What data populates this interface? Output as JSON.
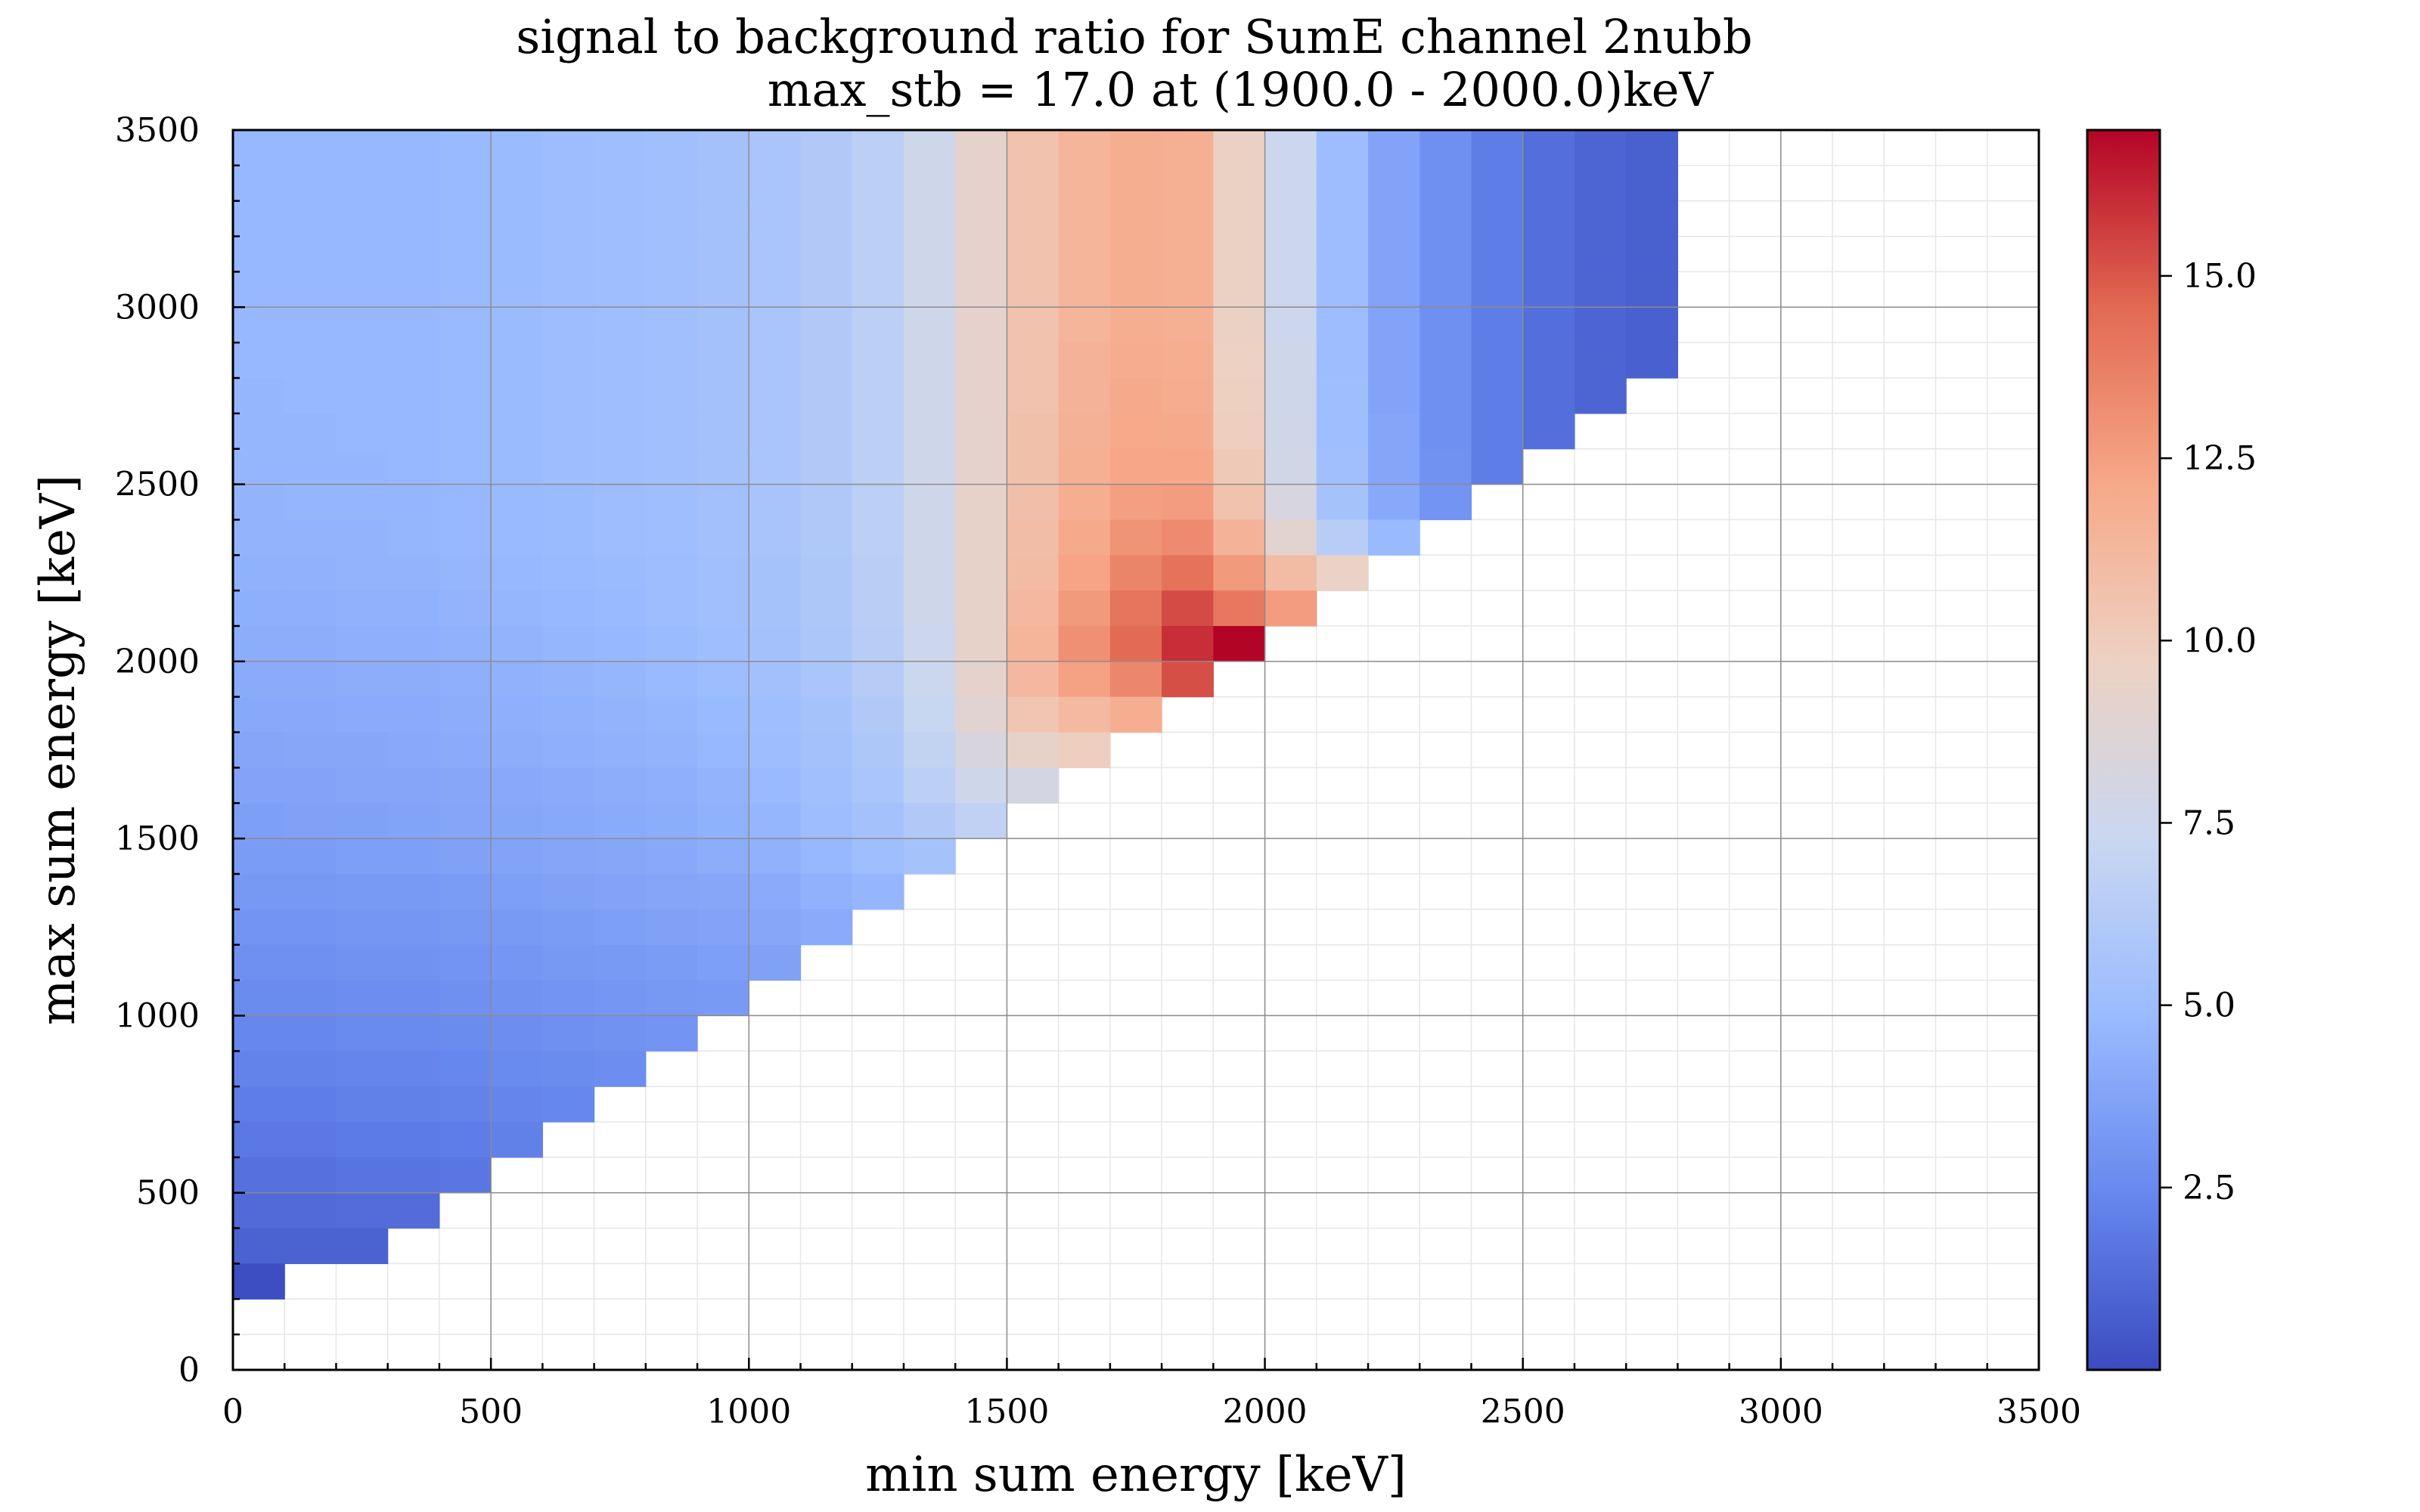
{
  "chart_data": {
    "type": "heatmap",
    "title": "signal to background ratio for SumE channel 2nubb",
    "subtitle": "max_stb = 17.0 at (1900.0 - 2000.0)keV",
    "xlabel": "min sum energy [keV]",
    "ylabel": "max sum energy [keV]",
    "xlim": [
      0,
      3500
    ],
    "ylim": [
      0,
      3500
    ],
    "bin_width": 100,
    "x_bin_starts": [
      0,
      100,
      200,
      300,
      400,
      500,
      600,
      700,
      800,
      900,
      1000,
      1100,
      1200,
      1300,
      1400,
      1500,
      1600,
      1700,
      1800,
      1900,
      2000,
      2100,
      2200,
      2300,
      2400,
      2500,
      2600,
      2700
    ],
    "y_bin_starts_top_to_bottom": [
      3400,
      3300,
      3200,
      3100,
      3000,
      2900,
      2800,
      2700,
      2600,
      2500,
      2400,
      2300,
      2200,
      2100,
      2000,
      1900,
      1800,
      1700,
      1600,
      1500,
      1400,
      1300,
      1200,
      1100,
      1000,
      900,
      800,
      700,
      600,
      500,
      400,
      300,
      200
    ],
    "z_rows": [
      [
        4.7,
        4.7,
        4.7,
        4.7,
        4.8,
        4.9,
        5,
        5.1,
        5.2,
        5.4,
        5.7,
        6.1,
        6.6,
        7.6,
        9.2,
        10.6,
        11.4,
        11.8,
        11.7,
        9.6,
        7.5,
        5,
        3.7,
        2.8,
        2,
        1.4,
        1,
        0.8
      ],
      [
        4.7,
        4.7,
        4.7,
        4.7,
        4.8,
        4.9,
        5,
        5.1,
        5.2,
        5.4,
        5.7,
        6.1,
        6.6,
        7.6,
        9.2,
        10.6,
        11.4,
        11.8,
        11.7,
        9.6,
        7.5,
        5,
        3.7,
        2.8,
        2,
        1.4,
        1,
        0.8
      ],
      [
        4.7,
        4.7,
        4.7,
        4.7,
        4.8,
        4.9,
        5,
        5.1,
        5.2,
        5.4,
        5.7,
        6.1,
        6.6,
        7.6,
        9.2,
        10.6,
        11.4,
        11.8,
        11.7,
        9.6,
        7.5,
        5,
        3.7,
        2.8,
        2,
        1.4,
        1,
        0.8
      ],
      [
        4.7,
        4.7,
        4.7,
        4.7,
        4.8,
        4.9,
        5,
        5.1,
        5.2,
        5.4,
        5.7,
        6.1,
        6.6,
        7.6,
        9.2,
        10.6,
        11.4,
        11.8,
        11.7,
        9.6,
        7.5,
        5,
        3.7,
        2.8,
        2,
        1.4,
        1,
        0.8
      ],
      [
        4.7,
        4.7,
        4.7,
        4.7,
        4.8,
        4.9,
        5,
        5.1,
        5.2,
        5.4,
        5.7,
        6.1,
        6.6,
        7.6,
        9.2,
        10.6,
        11.4,
        11.8,
        11.7,
        9.6,
        7.5,
        5,
        3.7,
        2.8,
        2,
        1.4,
        1,
        0.8
      ],
      [
        4.7,
        4.7,
        4.7,
        4.7,
        4.8,
        4.9,
        5,
        5.1,
        5.2,
        5.4,
        5.7,
        6.1,
        6.6,
        7.6,
        9.2,
        10.6,
        11.4,
        11.8,
        11.7,
        9.6,
        7.5,
        5,
        3.7,
        2.8,
        2,
        1.4,
        1,
        0.8
      ],
      [
        4.7,
        4.7,
        4.7,
        4.7,
        4.8,
        4.9,
        5,
        5.1,
        5.2,
        5.4,
        5.7,
        6.1,
        6.6,
        7.6,
        9.2,
        10.6,
        11.5,
        11.9,
        11.8,
        9.7,
        7.6,
        5,
        3.7,
        2.8,
        2,
        1.4,
        1,
        0.8
      ],
      [
        4.6,
        4.7,
        4.7,
        4.7,
        4.8,
        4.9,
        5,
        5.1,
        5.2,
        5.4,
        5.7,
        6.1,
        6.6,
        7.6,
        9.2,
        10.6,
        11.5,
        12,
        11.9,
        9.8,
        7.6,
        5.1,
        3.7,
        2.8,
        2,
        1.4,
        1,
        null
      ],
      [
        4.6,
        4.6,
        4.7,
        4.7,
        4.8,
        4.9,
        5,
        5.1,
        5.2,
        5.4,
        5.7,
        6.1,
        6.6,
        7.6,
        9.2,
        10.7,
        11.6,
        12.1,
        12,
        9.9,
        7.7,
        5.1,
        3.8,
        2.8,
        2,
        1.4,
        null,
        null
      ],
      [
        4.6,
        4.6,
        4.6,
        4.7,
        4.8,
        4.9,
        5,
        5.1,
        5.2,
        5.4,
        5.7,
        6.1,
        6.6,
        7.6,
        9.2,
        10.7,
        11.7,
        12.2,
        12.2,
        10.2,
        7.8,
        5.2,
        3.8,
        2.9,
        2,
        null,
        null,
        null
      ],
      [
        4.5,
        4.6,
        4.6,
        4.6,
        4.7,
        4.8,
        4.9,
        5,
        5.1,
        5.3,
        5.6,
        6,
        6.6,
        7.6,
        9.3,
        10.8,
        11.8,
        12.5,
        12.6,
        10.6,
        8.2,
        5.5,
        4,
        3,
        null,
        null,
        null,
        null
      ],
      [
        4.5,
        4.5,
        4.5,
        4.6,
        4.7,
        4.8,
        4.9,
        5,
        5.1,
        5.3,
        5.6,
        6,
        6.6,
        7.6,
        9.3,
        10.9,
        12,
        12.9,
        13.3,
        11.5,
        9,
        6.4,
        4.8,
        null,
        null,
        null,
        null,
        null
      ],
      [
        4.4,
        4.4,
        4.5,
        4.5,
        4.6,
        4.7,
        4.8,
        4.9,
        5,
        5.2,
        5.5,
        5.9,
        6.5,
        7.6,
        9.3,
        11,
        12.3,
        13.5,
        14.2,
        12.7,
        11,
        9.5,
        null,
        null,
        null,
        null,
        null,
        null
      ],
      [
        4.3,
        4.3,
        4.4,
        4.4,
        4.5,
        4.6,
        4.7,
        4.8,
        5,
        5.2,
        5.5,
        5.9,
        6.5,
        7.6,
        9.3,
        11.2,
        12.7,
        14.1,
        15.3,
        14,
        12.6,
        null,
        null,
        null,
        null,
        null,
        null,
        null
      ],
      [
        4.2,
        4.2,
        4.3,
        4.3,
        4.4,
        4.5,
        4.6,
        4.7,
        4.9,
        5.1,
        5.4,
        5.8,
        6.4,
        7.5,
        9.3,
        11.4,
        13.1,
        14.5,
        16,
        17,
        null,
        null,
        null,
        null,
        null,
        null,
        null,
        null
      ],
      [
        4.1,
        4.1,
        4.2,
        4.2,
        4.3,
        4.4,
        4.5,
        4.6,
        4.8,
        5,
        5.3,
        5.7,
        6.3,
        7.4,
        9.2,
        11.2,
        12.4,
        13.4,
        15.2,
        null,
        null,
        null,
        null,
        null,
        null,
        null,
        null,
        null
      ],
      [
        4,
        4,
        4.1,
        4.1,
        4.2,
        4.3,
        4.4,
        4.5,
        4.6,
        4.8,
        5.1,
        5.5,
        6.1,
        7.2,
        8.9,
        10.4,
        11.1,
        11.8,
        null,
        null,
        null,
        null,
        null,
        null,
        null,
        null,
        null,
        null
      ],
      [
        3.8,
        3.9,
        3.9,
        4,
        4.1,
        4.2,
        4.3,
        4.4,
        4.5,
        4.7,
        5,
        5.4,
        5.9,
        6.9,
        8.3,
        9.3,
        9.9,
        null,
        null,
        null,
        null,
        null,
        null,
        null,
        null,
        null,
        null,
        null
      ],
      [
        3.7,
        3.7,
        3.8,
        3.8,
        3.9,
        4,
        4.1,
        4.2,
        4.3,
        4.5,
        4.8,
        5.2,
        5.7,
        6.6,
        7.6,
        8,
        null,
        null,
        null,
        null,
        null,
        null,
        null,
        null,
        null,
        null,
        null,
        null
      ],
      [
        3.5,
        3.6,
        3.6,
        3.7,
        3.8,
        3.9,
        4,
        4.1,
        4.2,
        4.4,
        4.6,
        5,
        5.4,
        6.1,
        6.8,
        null,
        null,
        null,
        null,
        null,
        null,
        null,
        null,
        null,
        null,
        null,
        null,
        null
      ],
      [
        3.4,
        3.4,
        3.5,
        3.5,
        3.6,
        3.7,
        3.8,
        3.9,
        4,
        4.2,
        4.4,
        4.7,
        5.1,
        5.5,
        null,
        null,
        null,
        null,
        null,
        null,
        null,
        null,
        null,
        null,
        null,
        null,
        null,
        null
      ],
      [
        3.2,
        3.2,
        3.3,
        3.3,
        3.4,
        3.5,
        3.6,
        3.7,
        3.8,
        3.9,
        4.1,
        4.4,
        4.6,
        null,
        null,
        null,
        null,
        null,
        null,
        null,
        null,
        null,
        null,
        null,
        null,
        null,
        null,
        null
      ],
      [
        3,
        3,
        3.1,
        3.1,
        3.2,
        3.3,
        3.4,
        3.5,
        3.6,
        3.7,
        3.9,
        4.1,
        null,
        null,
        null,
        null,
        null,
        null,
        null,
        null,
        null,
        null,
        null,
        null,
        null,
        null,
        null,
        null
      ],
      [
        2.8,
        2.8,
        2.9,
        2.9,
        3,
        3.1,
        3.2,
        3.3,
        3.4,
        3.5,
        3.6,
        null,
        null,
        null,
        null,
        null,
        null,
        null,
        null,
        null,
        null,
        null,
        null,
        null,
        null,
        null,
        null,
        null
      ],
      [
        2.6,
        2.6,
        2.7,
        2.7,
        2.8,
        2.9,
        3,
        3.1,
        3.2,
        3.3,
        null,
        null,
        null,
        null,
        null,
        null,
        null,
        null,
        null,
        null,
        null,
        null,
        null,
        null,
        null,
        null,
        null,
        null
      ],
      [
        2.4,
        2.4,
        2.5,
        2.5,
        2.6,
        2.7,
        2.8,
        2.9,
        3,
        null,
        null,
        null,
        null,
        null,
        null,
        null,
        null,
        null,
        null,
        null,
        null,
        null,
        null,
        null,
        null,
        null,
        null,
        null
      ],
      [
        2.2,
        2.2,
        2.3,
        2.3,
        2.4,
        2.5,
        2.6,
        2.7,
        null,
        null,
        null,
        null,
        null,
        null,
        null,
        null,
        null,
        null,
        null,
        null,
        null,
        null,
        null,
        null,
        null,
        null,
        null,
        null
      ],
      [
        2,
        2,
        2.1,
        2.1,
        2.2,
        2.3,
        2.4,
        null,
        null,
        null,
        null,
        null,
        null,
        null,
        null,
        null,
        null,
        null,
        null,
        null,
        null,
        null,
        null,
        null,
        null,
        null,
        null,
        null
      ],
      [
        1.8,
        1.8,
        1.9,
        1.9,
        2,
        2.1,
        null,
        null,
        null,
        null,
        null,
        null,
        null,
        null,
        null,
        null,
        null,
        null,
        null,
        null,
        null,
        null,
        null,
        null,
        null,
        null,
        null,
        null
      ],
      [
        1.5,
        1.5,
        1.6,
        1.6,
        1.7,
        null,
        null,
        null,
        null,
        null,
        null,
        null,
        null,
        null,
        null,
        null,
        null,
        null,
        null,
        null,
        null,
        null,
        null,
        null,
        null,
        null,
        null,
        null
      ],
      [
        1.2,
        1.2,
        1.3,
        1.3,
        null,
        null,
        null,
        null,
        null,
        null,
        null,
        null,
        null,
        null,
        null,
        null,
        null,
        null,
        null,
        null,
        null,
        null,
        null,
        null,
        null,
        null,
        null,
        null
      ],
      [
        0.9,
        0.9,
        0.9,
        null,
        null,
        null,
        null,
        null,
        null,
        null,
        null,
        null,
        null,
        null,
        null,
        null,
        null,
        null,
        null,
        null,
        null,
        null,
        null,
        null,
        null,
        null,
        null,
        null
      ],
      [
        0.1,
        null,
        null,
        null,
        null,
        null,
        null,
        null,
        null,
        null,
        null,
        null,
        null,
        null,
        null,
        null,
        null,
        null,
        null,
        null,
        null,
        null,
        null,
        null,
        null,
        null,
        null,
        null
      ]
    ],
    "x_ticks": [
      "0",
      "500",
      "1000",
      "1500",
      "2000",
      "2500",
      "3000",
      "3500"
    ],
    "y_ticks": [
      "0",
      "500",
      "1000",
      "1500",
      "2000",
      "2500",
      "3000",
      "3500"
    ],
    "colorbar": {
      "ticks": [
        "2.5",
        "5.0",
        "7.5",
        "10.0",
        "12.5",
        "15.0"
      ],
      "min": 0,
      "max": 17,
      "colormap": "coolwarm",
      "colormap_stops": [
        "#3b4cc0",
        "#6788ee",
        "#9abbff",
        "#c9d7f0",
        "#edd1c2",
        "#f7a889",
        "#e26952",
        "#b40426"
      ]
    },
    "grid": true
  }
}
